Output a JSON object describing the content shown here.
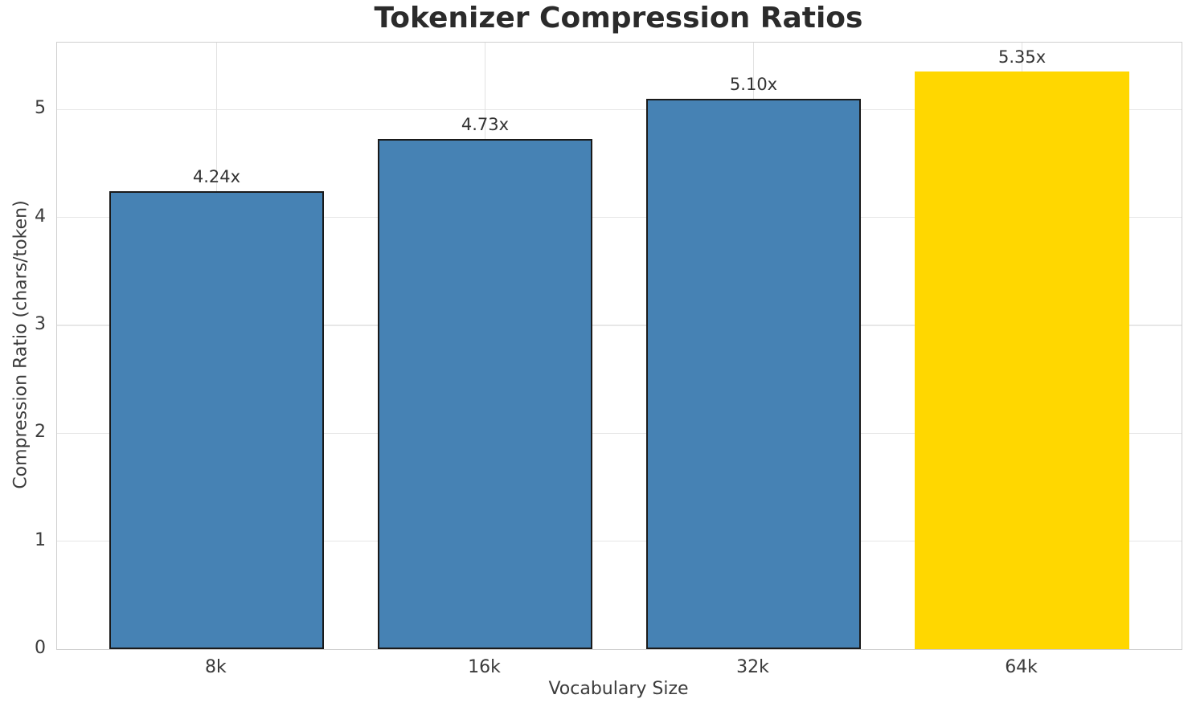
{
  "chart_data": {
    "type": "bar",
    "title": "Tokenizer Compression Ratios",
    "xlabel": "Vocabulary Size",
    "ylabel": "Compression Ratio (chars/token)",
    "categories": [
      "8k",
      "16k",
      "32k",
      "64k"
    ],
    "values": [
      4.24,
      4.73,
      5.1,
      5.35
    ],
    "bar_labels": [
      "4.24x",
      "4.73x",
      "5.10x",
      "5.35x"
    ],
    "bar_colors": [
      "#4682B4",
      "#4682B4",
      "#4682B4",
      "#FFD700"
    ],
    "bar_edge_colors": [
      "#1a1a1a",
      "#1a1a1a",
      "#1a1a1a",
      "none"
    ],
    "yticks": [
      0,
      1,
      2,
      3,
      4,
      5
    ],
    "ylim": [
      0,
      5.62
    ],
    "xlim": [
      -0.594,
      3.594
    ],
    "bar_width_units": 0.8,
    "grid": true,
    "legend": false
  },
  "colors": {
    "grid_horizontal": "#e7e7e7",
    "grid_vertical": "#e2e2e2",
    "spine": "#cfcfcf",
    "title_text": "#2b2b2b",
    "tick_text": "#3b3b3b",
    "value_label_text": "#333333",
    "background": "#ffffff"
  }
}
